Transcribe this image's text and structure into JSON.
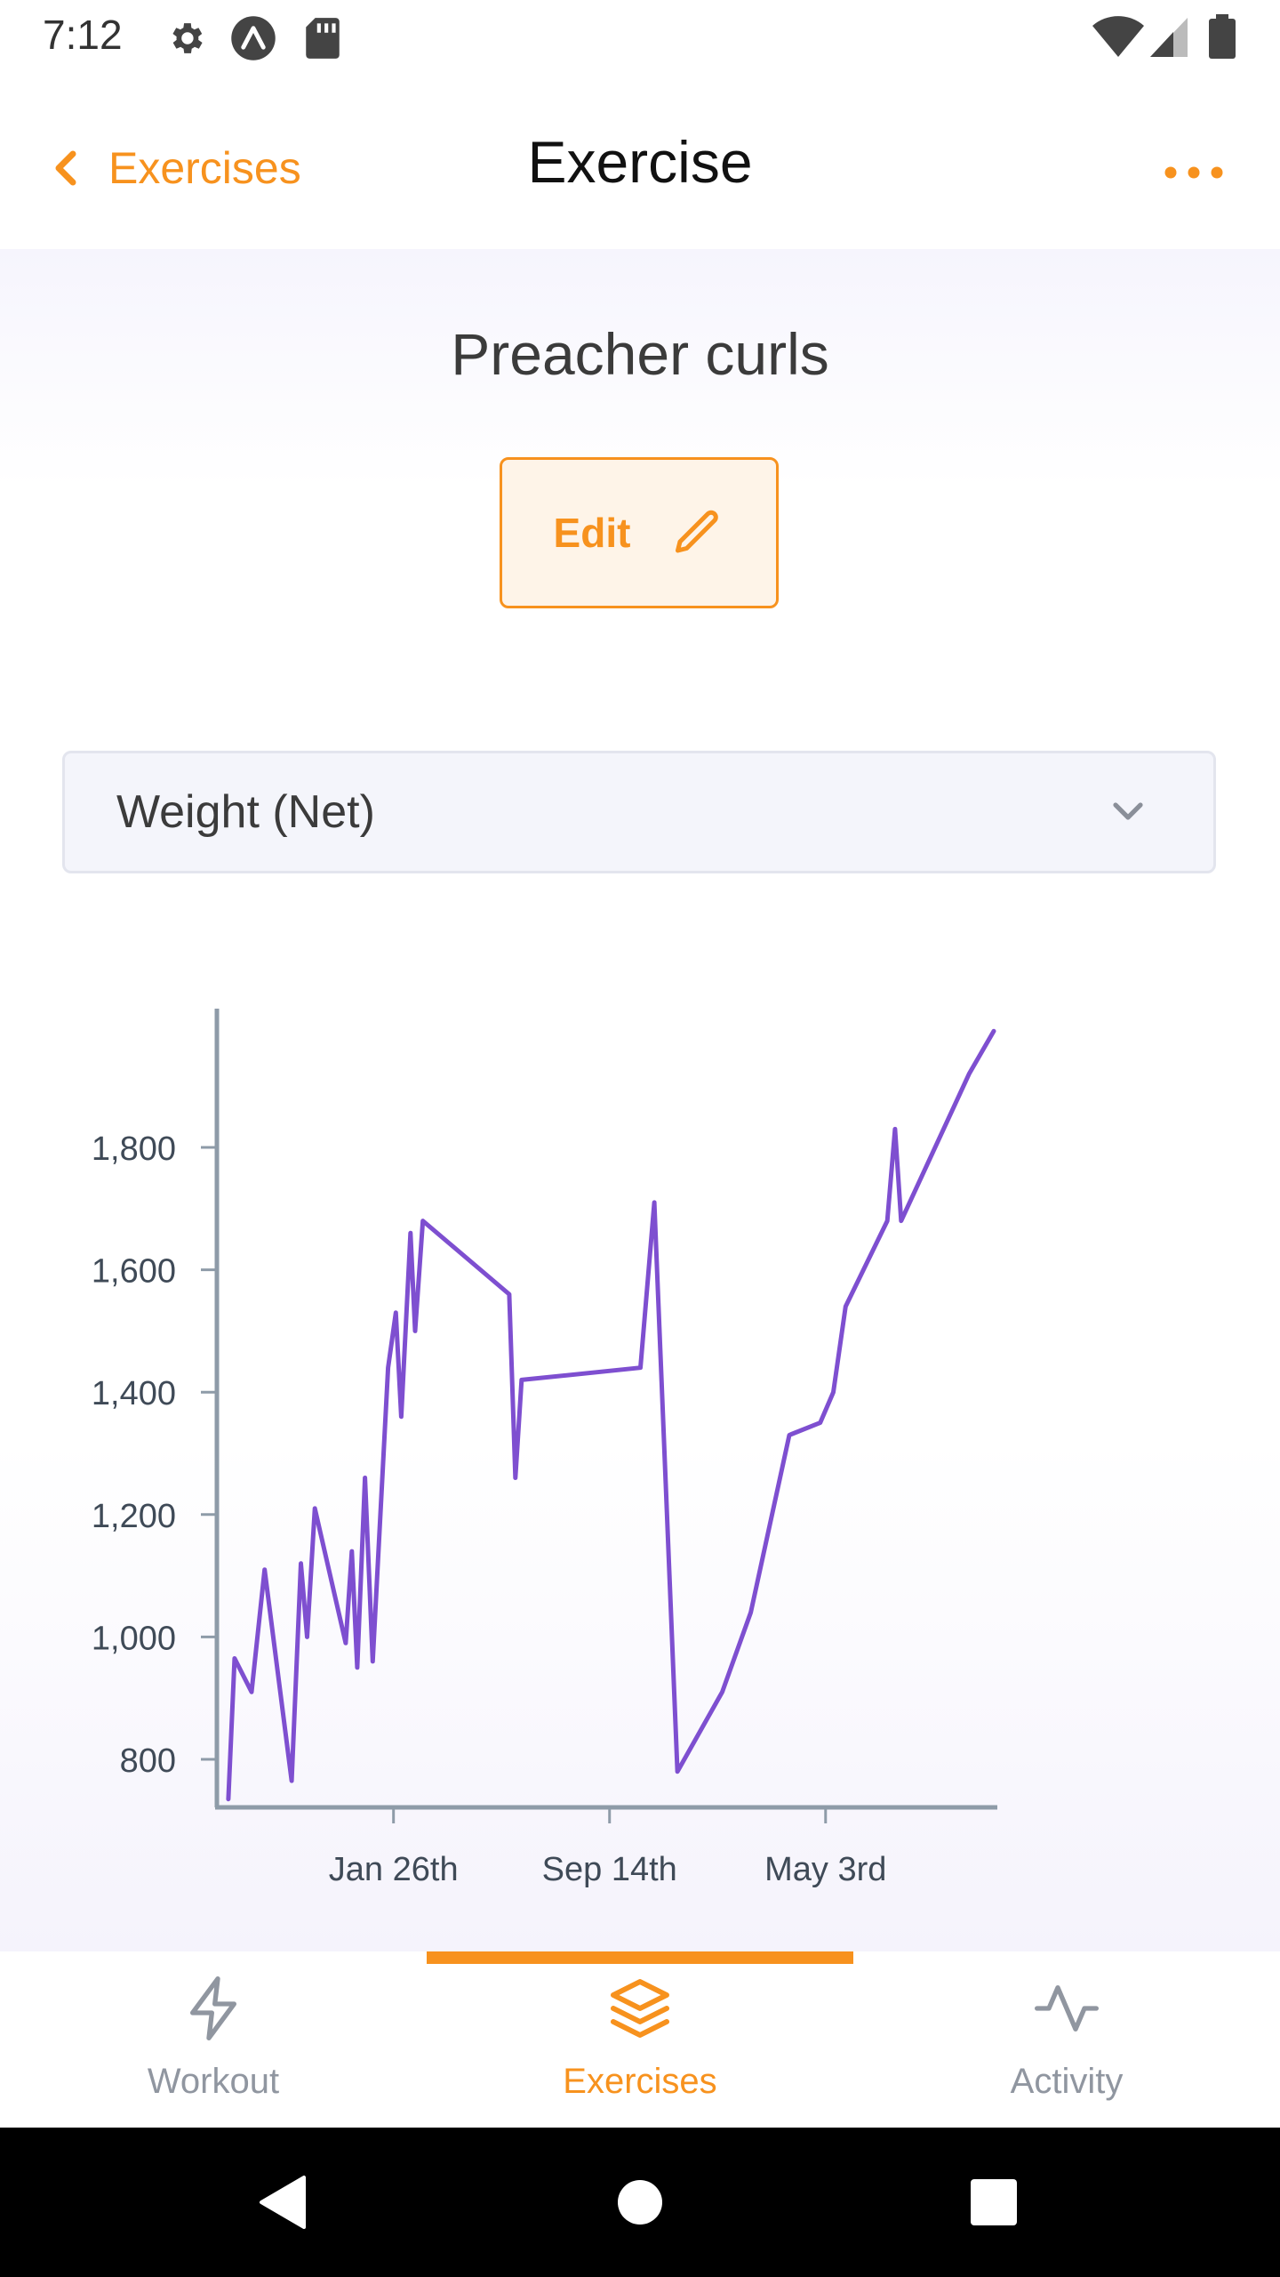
{
  "status_bar": {
    "time": "7:12"
  },
  "header": {
    "back_label": "Exercises",
    "title": "Exercise"
  },
  "exercise": {
    "name": "Preacher curls",
    "edit_label": "Edit"
  },
  "metric_select": {
    "selected": "Weight (Net)"
  },
  "colors": {
    "accent": "#F7921E",
    "series": "#7E4FD0",
    "axis": "#8E9BA8",
    "muted": "#9096A0"
  },
  "chart_data": {
    "type": "line",
    "title": "",
    "xlabel": "",
    "ylabel": "",
    "ylim": [
      720,
      1930
    ],
    "yticks": [
      800,
      1000,
      1200,
      1400,
      1600,
      1800
    ],
    "ytick_labels": [
      "800",
      "1,000",
      "1,200",
      "1,400",
      "1,600",
      "1,800"
    ],
    "xlim": [
      0,
      1000
    ],
    "xticks": [
      222,
      502,
      782
    ],
    "xtick_labels": [
      "Jan 26th",
      "Sep 14th",
      "May 3rd"
    ],
    "series": [
      {
        "values": [
          [
            8,
            735
          ],
          [
            16,
            965
          ],
          [
            38,
            910
          ],
          [
            55,
            1110
          ],
          [
            90,
            765
          ],
          [
            102,
            1120
          ],
          [
            110,
            1000
          ],
          [
            120,
            1210
          ],
          [
            160,
            990
          ],
          [
            168,
            1140
          ],
          [
            175,
            950
          ],
          [
            185,
            1260
          ],
          [
            195,
            960
          ],
          [
            215,
            1440
          ],
          [
            225,
            1530
          ],
          [
            232,
            1360
          ],
          [
            244,
            1660
          ],
          [
            250,
            1500
          ],
          [
            260,
            1680
          ],
          [
            372,
            1560
          ],
          [
            380,
            1260
          ],
          [
            388,
            1420
          ],
          [
            542,
            1440
          ],
          [
            560,
            1710
          ],
          [
            590,
            780
          ],
          [
            648,
            910
          ],
          [
            685,
            1040
          ],
          [
            735,
            1330
          ],
          [
            775,
            1350
          ],
          [
            792,
            1400
          ],
          [
            808,
            1540
          ],
          [
            862,
            1680
          ],
          [
            872,
            1830
          ],
          [
            880,
            1680
          ],
          [
            968,
            1920
          ],
          [
            1000,
            1990
          ]
        ]
      }
    ]
  },
  "tabs": [
    {
      "label": "Workout",
      "icon": "lightning-icon"
    },
    {
      "label": "Exercises",
      "icon": "layers-icon"
    },
    {
      "label": "Activity",
      "icon": "activity-icon"
    }
  ]
}
